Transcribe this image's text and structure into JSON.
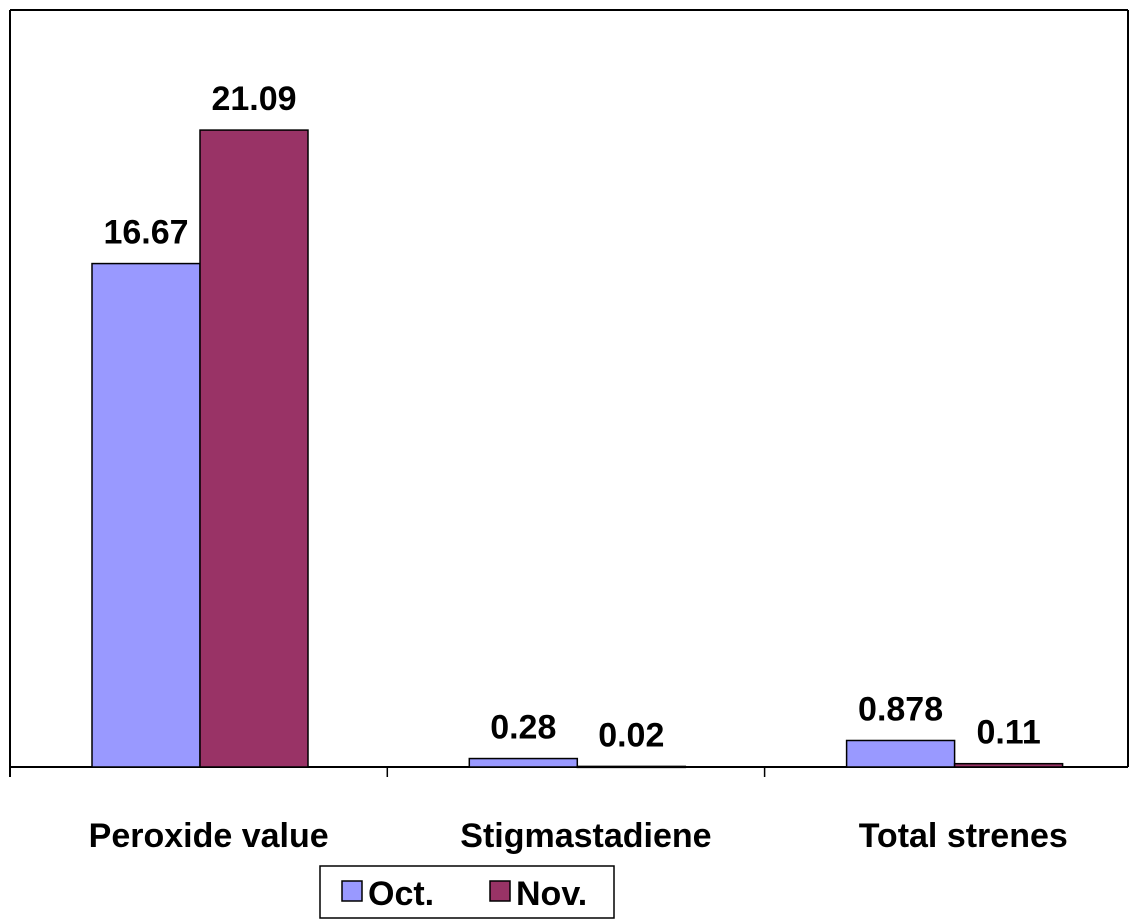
{
  "chart_data": {
    "type": "bar",
    "categories": [
      "Peroxide value",
      "Stigmastadiene",
      "Total strenes"
    ],
    "series": [
      {
        "name": "Oct.",
        "values": [
          16.67,
          0.28,
          0.878
        ],
        "labels": [
          "16.67",
          "0.28",
          "0.878"
        ],
        "color": "#9999ff"
      },
      {
        "name": "Nov.",
        "values": [
          21.09,
          0.02,
          0.11
        ],
        "labels": [
          "21.09",
          "0.02",
          "0.11"
        ],
        "color": "#993366"
      }
    ],
    "ylim": [
      0,
      25
    ],
    "grid": false,
    "legend_position": "bottom",
    "title": "",
    "xlabel": "",
    "ylabel": ""
  }
}
